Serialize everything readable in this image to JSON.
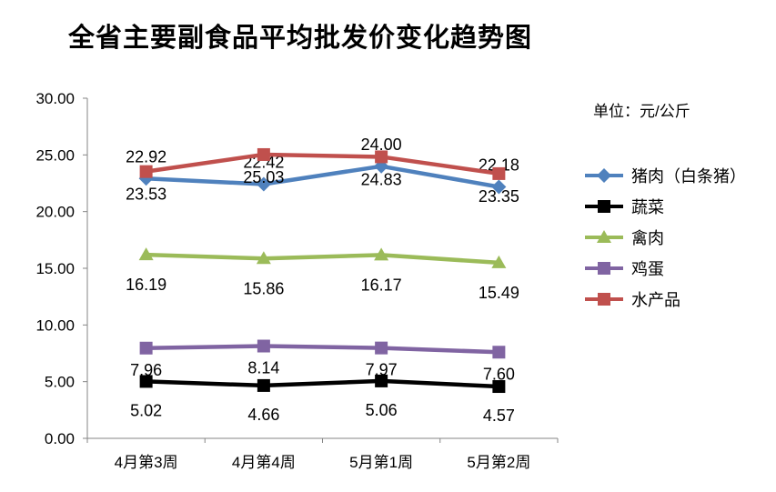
{
  "chart_data": {
    "type": "line",
    "title": "全省主要副食品平均批发价变化趋势图",
    "unit_note": "单位：元/公斤",
    "categories": [
      "4月第3周",
      "4月第4周",
      "5月第1周",
      "5月第2周"
    ],
    "ylim": [
      0,
      30
    ],
    "yticks": [
      "0.00",
      "5.00",
      "10.00",
      "15.00",
      "20.00",
      "25.00",
      "30.00"
    ],
    "grid": false,
    "legend": "right",
    "series": [
      {
        "name": "猪肉（白条猪）",
        "values": [
          22.92,
          22.42,
          24.0,
          22.18
        ],
        "labels": [
          "22.92",
          "22.42",
          "24.00",
          "22.18"
        ],
        "color": "#4F81BD",
        "marker": "diamond"
      },
      {
        "name": "蔬菜",
        "values": [
          5.02,
          4.66,
          5.06,
          4.57
        ],
        "labels": [
          "5.02",
          "4.66",
          "5.06",
          "4.57"
        ],
        "color": "#000000",
        "marker": "square"
      },
      {
        "name": "禽肉",
        "values": [
          16.19,
          15.86,
          16.17,
          15.49
        ],
        "labels": [
          "16.19",
          "15.86",
          "16.17",
          "15.49"
        ],
        "color": "#9BBB59",
        "marker": "triangle"
      },
      {
        "name": "鸡蛋",
        "values": [
          7.96,
          8.14,
          7.97,
          7.6
        ],
        "labels": [
          "7.96",
          "8.14",
          "7.97",
          "7.60"
        ],
        "color": "#8064A2",
        "marker": "square"
      },
      {
        "name": "水产品",
        "values": [
          23.53,
          25.03,
          24.83,
          23.35
        ],
        "labels": [
          "23.53",
          "25.03",
          "24.83",
          "23.35"
        ],
        "color": "#C0504D",
        "marker": "square"
      }
    ]
  }
}
